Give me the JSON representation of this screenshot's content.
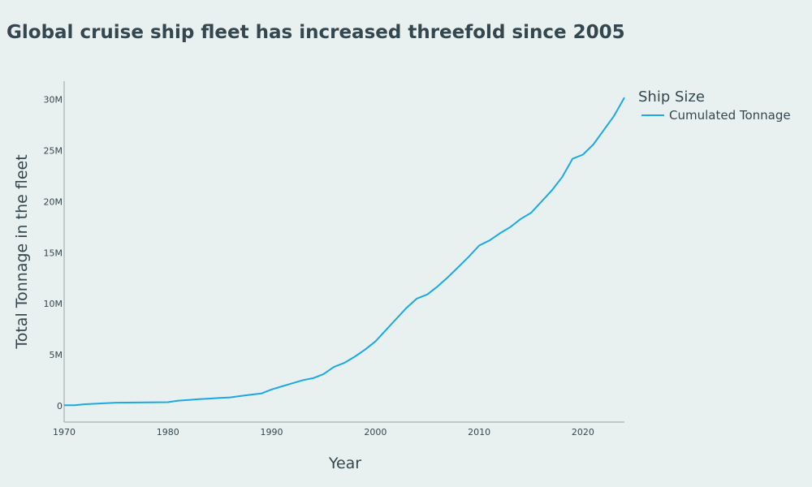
{
  "chart_data": {
    "type": "line",
    "title": "Global cruise ship fleet has increased threefold since 2005",
    "xlabel": "Year",
    "ylabel": "Total Tonnage in the fleet",
    "xlim": [
      1970,
      2024
    ],
    "ylim": [
      -1600000,
      31800000
    ],
    "x_ticks": [
      1970,
      1980,
      1990,
      2000,
      2010,
      2020
    ],
    "y_ticks": [
      0,
      5000000,
      10000000,
      15000000,
      20000000,
      25000000,
      30000000
    ],
    "y_tick_labels": [
      "0",
      "5M",
      "10M",
      "15M",
      "20M",
      "25M",
      "30M"
    ],
    "grid": false,
    "legend": {
      "title": "Ship Size",
      "placement": "top-right"
    },
    "series": [
      {
        "name": "Cumulated Tonnage",
        "color": "#1ba8e3",
        "x": [
          1970,
          1971,
          1972,
          1973,
          1974,
          1975,
          1976,
          1977,
          1978,
          1979,
          1980,
          1981,
          1982,
          1983,
          1984,
          1985,
          1986,
          1987,
          1988,
          1989,
          1990,
          1991,
          1992,
          1993,
          1994,
          1995,
          1996,
          1997,
          1998,
          1999,
          2000,
          2001,
          2002,
          2003,
          2004,
          2005,
          2006,
          2007,
          2008,
          2009,
          2010,
          2011,
          2012,
          2013,
          2014,
          2015,
          2016,
          2017,
          2018,
          2019,
          2020,
          2021,
          2022,
          2023,
          2024
        ],
        "values": [
          50000,
          50000,
          150000,
          200000,
          250000,
          300000,
          310000,
          320000,
          330000,
          340000,
          350000,
          500000,
          560000,
          640000,
          700000,
          760000,
          820000,
          950000,
          1080000,
          1200000,
          1600000,
          1900000,
          2200000,
          2500000,
          2700000,
          3100000,
          3800000,
          4200000,
          4800000,
          5500000,
          6300000,
          7400000,
          8500000,
          9600000,
          10500000,
          10900000,
          11700000,
          12600000,
          13600000,
          14600000,
          15700000,
          16200000,
          16900000,
          17500000,
          18300000,
          18900000,
          20000000,
          21100000,
          22400000,
          24200000,
          24600000,
          25600000,
          27000000,
          28400000,
          30200000
        ]
      }
    ]
  }
}
